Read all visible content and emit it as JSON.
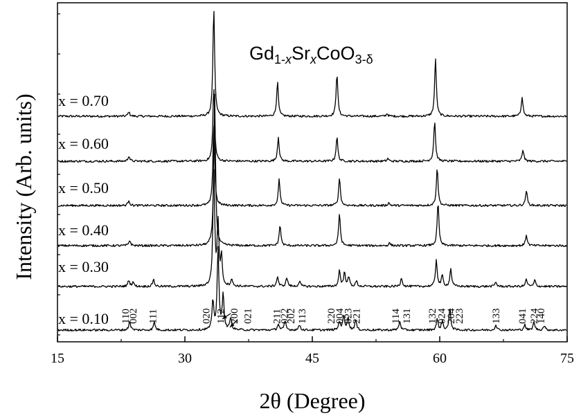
{
  "chart_data": {
    "type": "line",
    "title_parts": [
      {
        "text": "Gd",
        "sub": false,
        "italic": false
      },
      {
        "text": "1-",
        "sub": true,
        "italic": false
      },
      {
        "text": "x",
        "sub": true,
        "italic": true
      },
      {
        "text": "Sr",
        "sub": false,
        "italic": false
      },
      {
        "text": "x",
        "sub": true,
        "italic": true
      },
      {
        "text": "CoO",
        "sub": false,
        "italic": false
      },
      {
        "text": "3-δ",
        "sub": true,
        "italic": false
      }
    ],
    "xlabel": "2θ (Degree)",
    "ylabel": "Intensity (Arb. units)",
    "xlim": [
      15,
      75
    ],
    "xticks": [
      15,
      30,
      45,
      60,
      75
    ],
    "y_ticks_shown": false,
    "series": [
      {
        "label": "x = 0.70",
        "peaks": [
          [
            23.4,
            0.25
          ],
          [
            33.4,
            6.0
          ],
          [
            40.9,
            1.9
          ],
          [
            47.9,
            2.4
          ],
          [
            53.8,
            0.15
          ],
          [
            59.5,
            3.2
          ],
          [
            69.7,
            1.1
          ]
        ]
      },
      {
        "label": "x = 0.60",
        "peaks": [
          [
            23.4,
            0.3
          ],
          [
            33.4,
            4.2
          ],
          [
            41.0,
            1.35
          ],
          [
            47.9,
            1.35
          ],
          [
            53.9,
            0.15
          ],
          [
            59.4,
            2.25
          ],
          [
            69.8,
            0.65
          ]
        ]
      },
      {
        "label": "x = 0.50",
        "peaks": [
          [
            23.4,
            0.3
          ],
          [
            33.4,
            4.6
          ],
          [
            41.1,
            1.45
          ],
          [
            48.2,
            1.55
          ],
          [
            54.0,
            0.15
          ],
          [
            59.7,
            2.1
          ],
          [
            70.2,
            0.85
          ]
        ]
      },
      {
        "label": "x = 0.40",
        "peaks": [
          [
            23.5,
            0.3
          ],
          [
            33.5,
            8.5
          ],
          [
            41.2,
            1.15
          ],
          [
            48.2,
            1.8
          ],
          [
            54.1,
            0.15
          ],
          [
            59.8,
            2.4
          ],
          [
            70.2,
            0.6
          ]
        ]
      },
      {
        "label": "x = 0.30",
        "peaks": [
          [
            23.4,
            0.35
          ],
          [
            23.9,
            0.25
          ],
          [
            26.3,
            0.4
          ],
          [
            33.4,
            6.5
          ],
          [
            33.9,
            3.5
          ],
          [
            34.3,
            1.6
          ],
          [
            35.5,
            0.4
          ],
          [
            40.9,
            0.55
          ],
          [
            42.0,
            0.5
          ],
          [
            43.5,
            0.3
          ],
          [
            48.2,
            0.9
          ],
          [
            48.8,
            0.8
          ],
          [
            49.3,
            0.5
          ],
          [
            50.2,
            0.3
          ],
          [
            55.5,
            0.5
          ],
          [
            59.6,
            1.5
          ],
          [
            60.3,
            0.6
          ],
          [
            61.3,
            1.0
          ],
          [
            66.6,
            0.25
          ],
          [
            70.2,
            0.4
          ],
          [
            71.2,
            0.35
          ]
        ]
      },
      {
        "label": "x = 0.10",
        "peaks": [
          [
            23.5,
            0.5
          ],
          [
            26.4,
            0.45
          ],
          [
            33.3,
            1.6
          ],
          [
            33.9,
            4.5
          ],
          [
            34.5,
            2.0
          ],
          [
            35.4,
            0.7
          ],
          [
            41.0,
            0.35
          ],
          [
            41.8,
            0.5
          ],
          [
            43.5,
            0.3
          ],
          [
            48.2,
            0.5
          ],
          [
            48.7,
            0.8
          ],
          [
            49.2,
            0.7
          ],
          [
            50.1,
            0.55
          ],
          [
            55.3,
            0.5
          ],
          [
            59.7,
            0.6
          ],
          [
            60.3,
            0.5
          ],
          [
            61.2,
            1.2
          ],
          [
            66.6,
            0.3
          ],
          [
            70.0,
            0.3
          ],
          [
            71.1,
            0.45
          ],
          [
            72.3,
            0.25
          ]
        ]
      }
    ],
    "miller_indices": [
      {
        "label": "110",
        "x": 23.4
      },
      {
        "label": "002",
        "x": 24.3
      },
      {
        "label": "111",
        "x": 26.6
      },
      {
        "label": "020",
        "x": 32.9
      },
      {
        "label": "112",
        "x": 34.6
      },
      {
        "label": "200",
        "x": 36.2
      },
      {
        "label": "021",
        "x": 37.8
      },
      {
        "label": "211",
        "x": 41.2
      },
      {
        "label": "022",
        "x": 42.1
      },
      {
        "label": "202",
        "x": 42.9
      },
      {
        "label": "113",
        "x": 44.2
      },
      {
        "label": "220",
        "x": 47.6
      },
      {
        "label": "004",
        "x": 48.6
      },
      {
        "label": "023",
        "x": 49.6
      },
      {
        "label": "221",
        "x": 50.6
      },
      {
        "label": "114",
        "x": 55.2
      },
      {
        "label": "131",
        "x": 56.5
      },
      {
        "label": "132",
        "x": 59.5
      },
      {
        "label": "024",
        "x": 60.6
      },
      {
        "label": "204",
        "x": 61.7
      },
      {
        "label": "223",
        "x": 62.7
      },
      {
        "label": "133",
        "x": 67.0
      },
      {
        "label": "041",
        "x": 70.1
      },
      {
        "label": "224",
        "x": 71.5
      },
      {
        "label": "140",
        "x": 72.3
      }
    ]
  }
}
